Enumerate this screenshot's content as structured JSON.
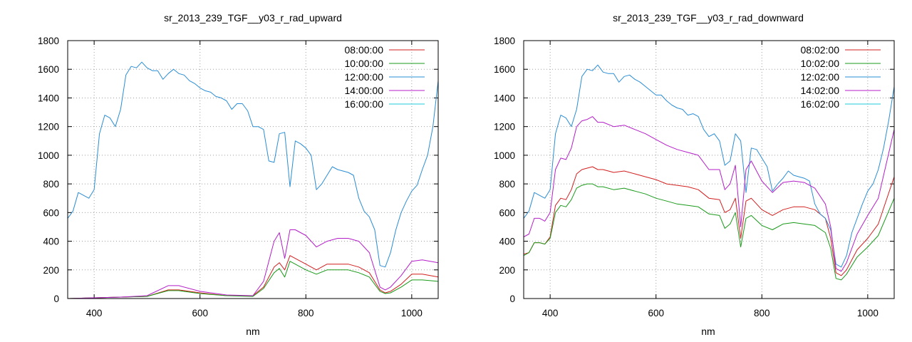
{
  "chart_data": [
    {
      "type": "line",
      "title": "sr_2013_239_TGF__y03_r_rad_upward",
      "xlabel": "nm",
      "ylabel": "",
      "xlim": [
        350,
        1050
      ],
      "ylim": [
        0,
        1800
      ],
      "xticks": [
        400,
        600,
        800,
        1000
      ],
      "yticks": [
        0,
        200,
        400,
        600,
        800,
        1000,
        1200,
        1400,
        1600,
        1800
      ],
      "grid": true,
      "legend_position": "top-right",
      "series": [
        {
          "name": "08:00:00",
          "color": "#d21f1f",
          "x": [
            350,
            400,
            450,
            500,
            540,
            560,
            600,
            650,
            700,
            720,
            740,
            750,
            760,
            770,
            780,
            800,
            820,
            840,
            860,
            880,
            900,
            920,
            940,
            950,
            960,
            980,
            1000,
            1020,
            1050
          ],
          "y": [
            0,
            5,
            10,
            15,
            60,
            60,
            40,
            20,
            20,
            80,
            220,
            250,
            200,
            300,
            280,
            240,
            200,
            240,
            240,
            240,
            220,
            180,
            60,
            40,
            50,
            100,
            170,
            170,
            150
          ]
        },
        {
          "name": "10:00:00",
          "color": "#1a9a1a",
          "x": [
            350,
            400,
            450,
            500,
            540,
            560,
            600,
            650,
            700,
            720,
            740,
            750,
            760,
            770,
            780,
            800,
            820,
            840,
            860,
            880,
            900,
            920,
            940,
            950,
            960,
            980,
            1000,
            1020,
            1050
          ],
          "y": [
            0,
            5,
            10,
            15,
            55,
            55,
            35,
            20,
            15,
            70,
            180,
            210,
            150,
            260,
            240,
            200,
            170,
            200,
            200,
            200,
            180,
            150,
            50,
            35,
            40,
            80,
            130,
            130,
            120
          ]
        },
        {
          "name": "12:00:00",
          "color": "#2a8dd4",
          "x": [
            350,
            360,
            370,
            380,
            390,
            400,
            410,
            420,
            430,
            440,
            450,
            460,
            470,
            480,
            490,
            500,
            510,
            520,
            530,
            540,
            550,
            560,
            570,
            580,
            590,
            600,
            610,
            620,
            630,
            640,
            650,
            660,
            670,
            680,
            690,
            700,
            710,
            720,
            730,
            740,
            750,
            760,
            770,
            780,
            790,
            800,
            810,
            820,
            830,
            840,
            850,
            860,
            870,
            880,
            890,
            900,
            910,
            920,
            930,
            940,
            950,
            960,
            970,
            980,
            990,
            1000,
            1010,
            1020,
            1030,
            1040,
            1050
          ],
          "y": [
            560,
            610,
            740,
            720,
            700,
            760,
            1150,
            1280,
            1260,
            1200,
            1320,
            1560,
            1620,
            1610,
            1650,
            1610,
            1590,
            1590,
            1530,
            1570,
            1600,
            1570,
            1560,
            1520,
            1500,
            1470,
            1450,
            1440,
            1410,
            1400,
            1380,
            1320,
            1360,
            1360,
            1310,
            1200,
            1200,
            1180,
            960,
            950,
            1150,
            1160,
            780,
            1100,
            1080,
            1050,
            1000,
            760,
            800,
            860,
            920,
            900,
            890,
            880,
            860,
            700,
            610,
            570,
            480,
            230,
            220,
            320,
            480,
            600,
            680,
            750,
            790,
            900,
            1000,
            1200,
            1520
          ]
        },
        {
          "name": "14:00:00",
          "color": "#b41ec8",
          "x": [
            350,
            400,
            450,
            500,
            540,
            560,
            600,
            650,
            700,
            720,
            740,
            750,
            760,
            770,
            780,
            800,
            820,
            840,
            860,
            880,
            900,
            920,
            940,
            950,
            960,
            980,
            1000,
            1020,
            1050
          ],
          "y": [
            0,
            5,
            10,
            20,
            90,
            90,
            50,
            25,
            20,
            120,
            400,
            460,
            280,
            480,
            480,
            440,
            360,
            400,
            420,
            420,
            400,
            320,
            80,
            60,
            80,
            160,
            260,
            270,
            250
          ]
        },
        {
          "name": "16:00:00",
          "color": "#22c8d8",
          "x": [],
          "y": []
        }
      ]
    },
    {
      "type": "line",
      "title": "sr_2013_239_TGF__y03_r_rad_downward",
      "xlabel": "nm",
      "ylabel": "",
      "xlim": [
        350,
        1050
      ],
      "ylim": [
        0,
        1800
      ],
      "xticks": [
        400,
        600,
        800,
        1000
      ],
      "yticks": [
        0,
        200,
        400,
        600,
        800,
        1000,
        1200,
        1400,
        1600,
        1800
      ],
      "grid": true,
      "legend_position": "top-right",
      "series": [
        {
          "name": "08:02:00",
          "color": "#d21f1f",
          "x": [
            350,
            360,
            370,
            380,
            390,
            400,
            410,
            420,
            430,
            440,
            450,
            460,
            470,
            480,
            490,
            500,
            520,
            540,
            560,
            580,
            600,
            620,
            640,
            660,
            680,
            700,
            720,
            730,
            740,
            750,
            760,
            770,
            780,
            800,
            820,
            840,
            860,
            880,
            900,
            920,
            930,
            940,
            950,
            960,
            980,
            1000,
            1020,
            1050
          ],
          "y": [
            310,
            320,
            390,
            390,
            380,
            430,
            650,
            700,
            690,
            760,
            870,
            900,
            910,
            920,
            900,
            900,
            880,
            890,
            870,
            850,
            830,
            800,
            790,
            780,
            760,
            700,
            690,
            600,
            620,
            700,
            420,
            680,
            700,
            620,
            580,
            620,
            640,
            640,
            620,
            560,
            420,
            180,
            160,
            200,
            340,
            420,
            520,
            850
          ]
        },
        {
          "name": "10:02:00",
          "color": "#1a9a1a",
          "x": [
            350,
            360,
            370,
            380,
            390,
            400,
            410,
            420,
            430,
            440,
            450,
            460,
            470,
            480,
            490,
            500,
            520,
            540,
            560,
            580,
            600,
            620,
            640,
            660,
            680,
            700,
            720,
            730,
            740,
            750,
            760,
            770,
            780,
            800,
            820,
            840,
            860,
            880,
            900,
            920,
            930,
            940,
            950,
            960,
            980,
            1000,
            1020,
            1050
          ],
          "y": [
            300,
            320,
            390,
            390,
            380,
            420,
            600,
            650,
            640,
            690,
            770,
            790,
            800,
            800,
            780,
            780,
            760,
            770,
            750,
            730,
            700,
            680,
            660,
            650,
            640,
            590,
            580,
            490,
            520,
            600,
            360,
            560,
            580,
            510,
            480,
            520,
            530,
            520,
            510,
            460,
            350,
            140,
            130,
            170,
            290,
            360,
            440,
            700
          ]
        },
        {
          "name": "12:02:00",
          "color": "#2a8dd4",
          "x": [
            350,
            360,
            370,
            380,
            390,
            400,
            410,
            420,
            430,
            440,
            450,
            460,
            470,
            480,
            490,
            500,
            510,
            520,
            530,
            540,
            550,
            560,
            570,
            580,
            590,
            600,
            610,
            620,
            630,
            640,
            650,
            660,
            670,
            680,
            690,
            700,
            710,
            720,
            730,
            740,
            750,
            760,
            770,
            780,
            790,
            800,
            810,
            820,
            830,
            840,
            850,
            860,
            870,
            880,
            890,
            900,
            910,
            920,
            930,
            940,
            950,
            960,
            970,
            980,
            990,
            1000,
            1010,
            1020,
            1030,
            1040,
            1050
          ],
          "y": [
            560,
            610,
            740,
            720,
            700,
            760,
            1150,
            1280,
            1260,
            1200,
            1320,
            1550,
            1600,
            1590,
            1630,
            1580,
            1570,
            1570,
            1510,
            1550,
            1560,
            1530,
            1510,
            1480,
            1450,
            1420,
            1420,
            1380,
            1350,
            1330,
            1320,
            1280,
            1290,
            1270,
            1180,
            1130,
            1150,
            1100,
            930,
            960,
            1150,
            1100,
            740,
            1050,
            1040,
            980,
            920,
            750,
            800,
            840,
            890,
            860,
            850,
            840,
            820,
            660,
            590,
            560,
            480,
            240,
            220,
            300,
            460,
            560,
            660,
            750,
            800,
            900,
            1050,
            1250,
            1480
          ]
        },
        {
          "name": "14:02:00",
          "color": "#b41ec8",
          "x": [
            350,
            360,
            370,
            380,
            390,
            400,
            410,
            420,
            430,
            440,
            450,
            460,
            470,
            480,
            490,
            500,
            520,
            540,
            560,
            580,
            600,
            620,
            640,
            660,
            680,
            700,
            720,
            730,
            740,
            750,
            760,
            770,
            780,
            800,
            820,
            840,
            860,
            880,
            900,
            920,
            930,
            940,
            950,
            960,
            980,
            1000,
            1020,
            1050
          ],
          "y": [
            430,
            450,
            560,
            560,
            540,
            600,
            900,
            980,
            970,
            1050,
            1200,
            1240,
            1250,
            1270,
            1230,
            1230,
            1200,
            1210,
            1180,
            1150,
            1110,
            1070,
            1040,
            1020,
            1000,
            900,
            900,
            760,
            800,
            930,
            500,
            900,
            960,
            820,
            740,
            810,
            820,
            810,
            770,
            660,
            500,
            210,
            190,
            250,
            450,
            580,
            700,
            1180
          ]
        },
        {
          "name": "16:02:00",
          "color": "#22c8d8",
          "x": [],
          "y": []
        }
      ]
    }
  ]
}
